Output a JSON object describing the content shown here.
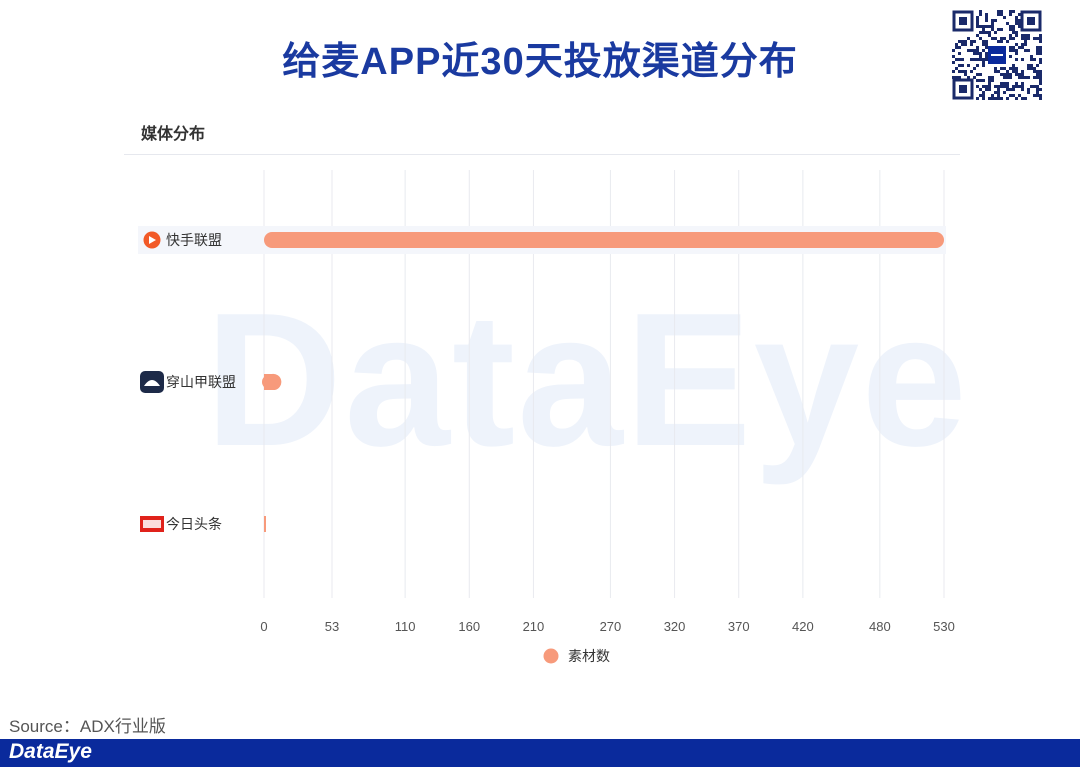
{
  "title": "给麦APP近30天投放渠道分布",
  "section_label": "媒体分布",
  "watermark": "DataEye",
  "source": "Source：ADX行业版",
  "footer_logo": "DataEye",
  "colors": {
    "bar": "#f79a7b",
    "title": "#1a3aa0",
    "footer": "#0a2a9c"
  },
  "chart_data": {
    "type": "bar",
    "orientation": "horizontal",
    "categories": [
      "快手联盟",
      "穿山甲联盟",
      "今日头条"
    ],
    "category_icons": [
      "kuaishou-icon",
      "pangle-icon",
      "toutiao-icon"
    ],
    "series": [
      {
        "name": "素材数",
        "values": [
          530,
          6,
          1
        ]
      }
    ],
    "x_ticks": [
      0,
      53,
      110,
      160,
      210,
      270,
      320,
      370,
      420,
      480,
      530
    ],
    "xlim": [
      0,
      530
    ],
    "grid": true,
    "legend": "bottom-center"
  }
}
